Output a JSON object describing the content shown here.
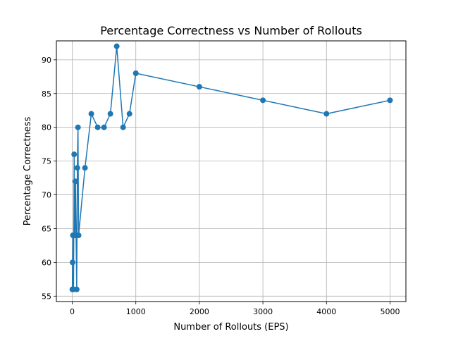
{
  "chart_data": {
    "type": "line",
    "title": "Percentage Correctness vs Number of Rollouts",
    "xlabel": "Number of Rollouts (EPS)",
    "ylabel": "Percentage Correctness",
    "xlim": [
      -250,
      5250
    ],
    "ylim": [
      54.2,
      92.8
    ],
    "xticks": [
      0,
      1000,
      2000,
      3000,
      4000,
      5000
    ],
    "yticks": [
      55,
      60,
      65,
      70,
      75,
      80,
      85,
      90
    ],
    "grid": true,
    "marker": "circle",
    "series": [
      {
        "color": "#1f77b4",
        "x": [
          1,
          5,
          10,
          20,
          30,
          40,
          50,
          60,
          70,
          80,
          90,
          100,
          200,
          300,
          400,
          500,
          600,
          700,
          800,
          900,
          1000,
          2000,
          3000,
          4000,
          5000
        ],
        "y": [
          56,
          60,
          64,
          56,
          76,
          64,
          72,
          64,
          56,
          74,
          80,
          64,
          74,
          82,
          80,
          80,
          82,
          92,
          80,
          82,
          88,
          86,
          84,
          82,
          84
        ]
      }
    ]
  }
}
